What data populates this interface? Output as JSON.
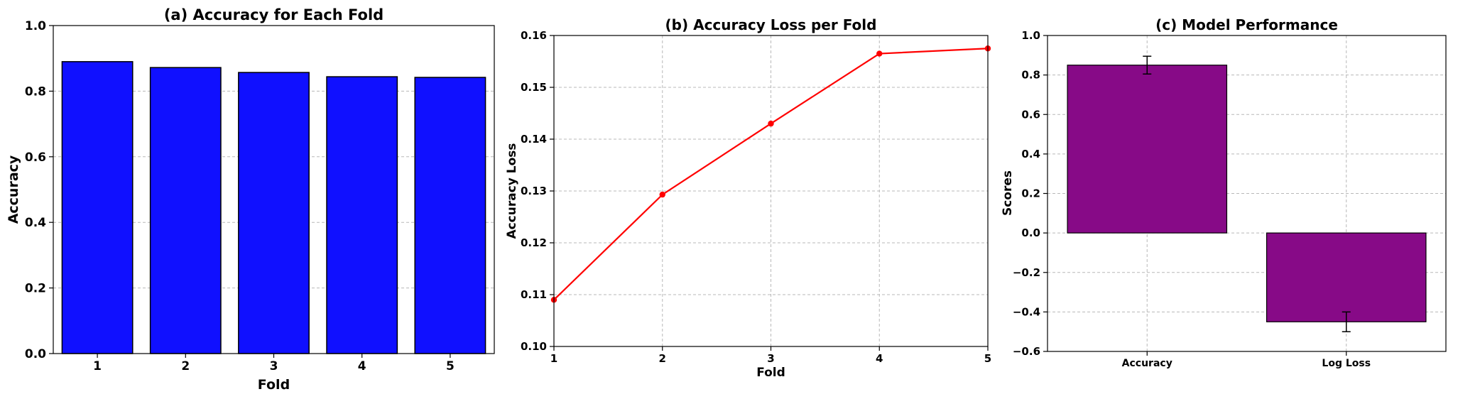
{
  "chart_data": [
    {
      "type": "bar",
      "title": "(a) Accuracy for Each Fold",
      "xlabel": "Fold",
      "ylabel": "Accuracy",
      "categories": [
        "1",
        "2",
        "3",
        "4",
        "5"
      ],
      "values": [
        0.89,
        0.872,
        0.857,
        0.844,
        0.842
      ],
      "ylim": [
        0,
        1.0
      ],
      "yticks": [
        "0.0",
        "0.2",
        "0.4",
        "0.6",
        "0.8",
        "1.0"
      ],
      "ytick_values": [
        0,
        0.2,
        0.4,
        0.6,
        0.8,
        1.0
      ],
      "color": "#1010ff",
      "grid": "y"
    },
    {
      "type": "line",
      "title": "(b) Accuracy Loss per Fold",
      "xlabel": "Fold",
      "ylabel": "Accuracy Loss",
      "x": [
        1,
        2,
        3,
        4,
        5
      ],
      "xticks": [
        "1",
        "2",
        "3",
        "4",
        "5"
      ],
      "values": [
        0.109,
        0.1293,
        0.143,
        0.1565,
        0.1575
      ],
      "xlim": [
        1,
        5
      ],
      "ylim": [
        0.1,
        0.16
      ],
      "yticks": [
        "0.10",
        "0.11",
        "0.12",
        "0.13",
        "0.14",
        "0.15",
        "0.16"
      ],
      "ytick_values": [
        0.1,
        0.11,
        0.12,
        0.13,
        0.14,
        0.15,
        0.16
      ],
      "color": "#ff0000",
      "grid": "both"
    },
    {
      "type": "bar",
      "title": "(c) Model Performance",
      "xlabel": "",
      "ylabel": "Scores",
      "categories": [
        "Accuracy",
        "Log Loss"
      ],
      "values": [
        0.85,
        -0.45
      ],
      "errors": [
        0.045,
        0.05
      ],
      "ylim": [
        -0.6,
        1.0
      ],
      "yticks": [
        "−0.6",
        "−0.4",
        "−0.2",
        "0.0",
        "0.2",
        "0.4",
        "0.6",
        "0.8",
        "1.0"
      ],
      "ytick_values": [
        -0.6,
        -0.4,
        -0.2,
        0.0,
        0.2,
        0.4,
        0.6,
        0.8,
        1.0
      ],
      "color": "#870a87",
      "grid": "both"
    }
  ]
}
